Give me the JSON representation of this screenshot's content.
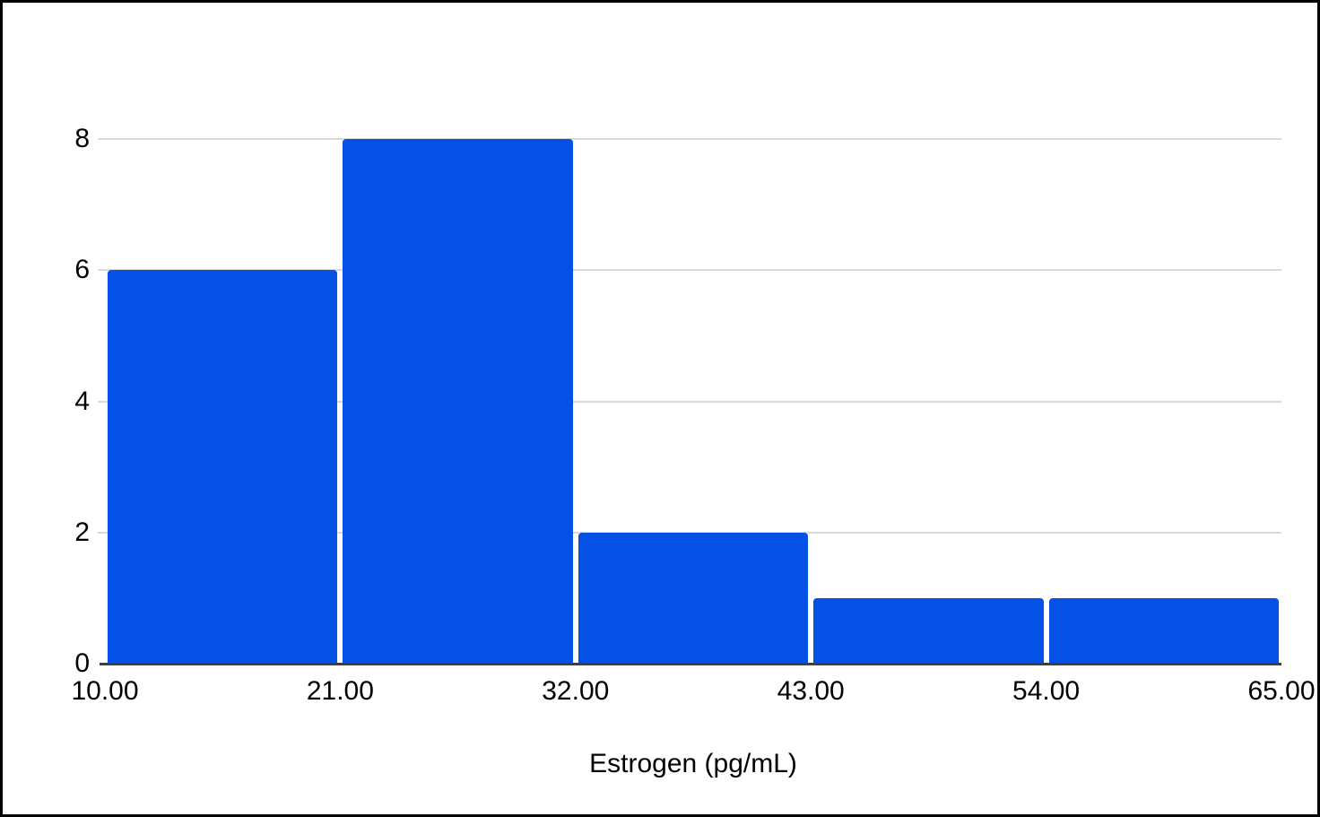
{
  "chart_data": {
    "type": "bar",
    "subtype": "histogram",
    "title": "",
    "xlabel": "Estrogen (pg/mL)",
    "ylabel": "",
    "bin_edges": [
      10.0,
      21.0,
      32.0,
      43.0,
      54.0,
      65.0
    ],
    "bin_edge_labels": [
      "10.00",
      "21.00",
      "32.00",
      "43.00",
      "54.00",
      "65.00"
    ],
    "categories": [
      "10.00–21.00",
      "21.00–32.00",
      "32.00–43.00",
      "43.00–54.00",
      "54.00–65.00"
    ],
    "values": [
      6,
      8,
      2,
      1,
      1
    ],
    "ylim": [
      0,
      8
    ],
    "yticks": [
      0,
      2,
      4,
      6,
      8
    ],
    "grid": true,
    "legend": "none",
    "colors": {
      "bar": "#0551e6",
      "gridline": "#d9d9d9",
      "axis_line": "#3c4043",
      "text": "#000000",
      "background": "#ffffff",
      "frame_border": "#000000"
    }
  }
}
